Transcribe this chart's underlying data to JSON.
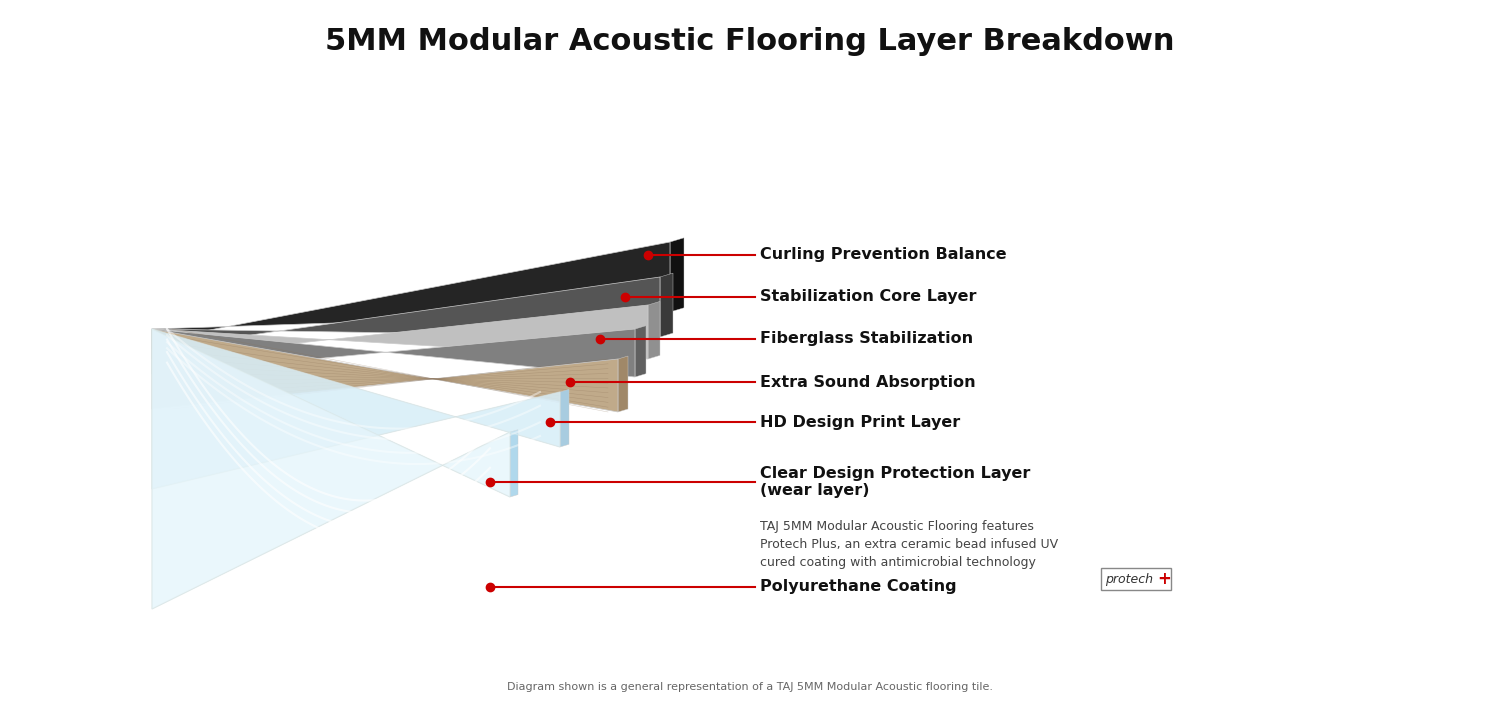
{
  "title": "5MM Modular Acoustic Flooring Layer Breakdown",
  "title_fontsize": 22,
  "background_color": "#ffffff",
  "disclaimer": "Diagram shown is a general representation of a TAJ 5MM Modular Acoustic flooring tile.",
  "accent_color": "#cc0000",
  "dot_color": "#cc0000",
  "line_color": "#cc0000",
  "layers": [
    {
      "name": "Curling Prevention Balance",
      "face_color": "#252525",
      "side_color": "#111111",
      "top_color": "#1a1a1a",
      "label": "Curling Prevention Balance",
      "subtext": ""
    },
    {
      "name": "Stabilization Core Layer",
      "face_color": "#555555",
      "side_color": "#3a3a3a",
      "top_color": "#444444",
      "label": "Stabilization Core Layer",
      "subtext": ""
    },
    {
      "name": "Fiberglass Stabilization",
      "face_color": "#c0c0c0",
      "side_color": "#909090",
      "top_color": "#b0b0b0",
      "label": "Fiberglass Stabilization",
      "subtext": ""
    },
    {
      "name": "Extra Sound Absorption",
      "face_color": "#808080",
      "side_color": "#606060",
      "top_color": "#707070",
      "label": "Extra Sound Absorption",
      "subtext": ""
    },
    {
      "name": "HD Design Print Layer",
      "face_color": "#c0aa8a",
      "side_color": "#a08868",
      "top_color": "#b09878",
      "label": "HD Design Print Layer",
      "subtext": ""
    },
    {
      "name": "Clear Design Protection Layer",
      "face_color": "#d8eef8",
      "side_color": "#a8cce0",
      "top_color": "#c8e4f4",
      "label": "Clear Design Protection Layer\n(wear layer)",
      "subtext": ""
    },
    {
      "name": "Polyurethane Coating",
      "face_color": "#e8f6fc",
      "side_color": "#b0d8ec",
      "top_color": "#d8eefc",
      "label": "Polyurethane Coating",
      "subtext": "TAJ 5MM Modular Acoustic Flooring features\nProtech Plus, an extra ceramic bead infused UV\ncured coating with antimicrobial technology",
      "protech": true
    }
  ]
}
